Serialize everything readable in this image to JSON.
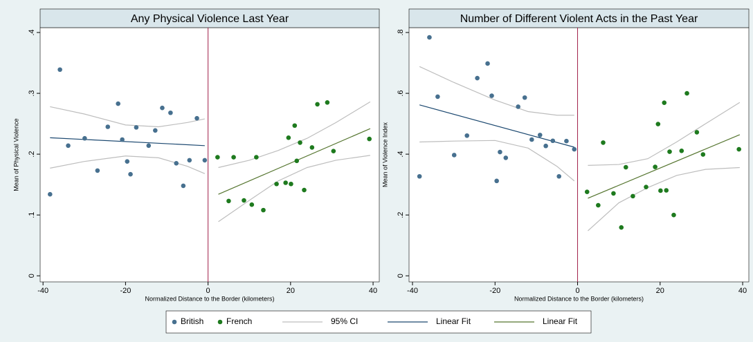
{
  "chart_data": [
    {
      "type": "scatter",
      "title": "Any Physical Violence Last Year",
      "xtitle": "Normalized Distance to the Border (kilometers)",
      "ytitle": "Mean of Physical Violence",
      "xlim": [
        -40.7,
        41.5
      ],
      "ylim": [
        -0.01,
        0.408
      ],
      "xticks": [
        -40,
        -20,
        0,
        20,
        40
      ],
      "yticks": [
        0,
        {
          "value": 0.1,
          "label": ".1"
        },
        {
          "value": 0.2,
          "label": ".2"
        },
        {
          "value": 0.3,
          "label": ".3"
        },
        {
          "value": 0.4,
          "label": ".4"
        }
      ],
      "vline": 0,
      "vline_color": "#a0204a",
      "series": [
        {
          "name": "British",
          "mode": "markers",
          "color": "#47708f",
          "x": [
            -38.3,
            -35.9,
            -33.9,
            -29.9,
            -26.8,
            -24.3,
            -21.8,
            -20.8,
            -19.6,
            -18.8,
            -17.4,
            -14.4,
            -12.8,
            -11.1,
            -9.1,
            -7.7,
            -6.0,
            -4.5,
            -2.7,
            -0.8
          ],
          "values": [
            0.134,
            0.339,
            0.214,
            0.226,
            0.173,
            0.245,
            0.283,
            0.224,
            0.188,
            0.167,
            0.244,
            0.214,
            0.239,
            0.276,
            0.268,
            0.185,
            0.148,
            0.19,
            0.259,
            0.19
          ]
        },
        {
          "name": "French",
          "mode": "markers",
          "color": "#1e7a1e",
          "x": [
            2.3,
            5.0,
            6.2,
            8.7,
            10.6,
            11.7,
            13.4,
            16.6,
            18.8,
            19.5,
            20.1,
            21.0,
            21.5,
            22.3,
            23.3,
            25.2,
            26.5,
            28.9,
            30.4,
            39.1
          ],
          "values": [
            0.195,
            0.123,
            0.195,
            0.124,
            0.117,
            0.195,
            0.108,
            0.151,
            0.153,
            0.227,
            0.151,
            0.247,
            0.189,
            0.219,
            0.141,
            0.211,
            0.282,
            0.285,
            0.205,
            0.225
          ]
        },
        {
          "name": "95% CI",
          "mode": "line",
          "color": "#bdbdbd",
          "x": [
            -38.3,
            -30,
            -20,
            -12,
            -5,
            -0.8
          ],
          "values": [
            0.278,
            0.266,
            0.248,
            0.245,
            0.252,
            0.258
          ]
        },
        {
          "mode": "line",
          "color": "#bdbdbd",
          "x": [
            -38.3,
            -30,
            -20,
            -12,
            -5,
            -0.8
          ],
          "values": [
            0.177,
            0.188,
            0.197,
            0.194,
            0.18,
            0.168
          ]
        },
        {
          "name": "Linear Fit",
          "mode": "line",
          "color": "#1a476f",
          "x": [
            -38.3,
            -0.8
          ],
          "values": [
            0.227,
            0.214
          ]
        },
        {
          "name": "Linear Fit",
          "mode": "line",
          "color": "#55752f",
          "x": [
            2.5,
            39.3
          ],
          "values": [
            0.134,
            0.242
          ]
        },
        {
          "mode": "line",
          "color": "#bdbdbd",
          "x": [
            2.5,
            10,
            17,
            24,
            31,
            39.3
          ],
          "values": [
            0.178,
            0.19,
            0.206,
            0.226,
            0.252,
            0.286
          ]
        },
        {
          "mode": "line",
          "color": "#bdbdbd",
          "x": [
            2.5,
            10,
            17,
            24,
            31,
            39.3
          ],
          "values": [
            0.089,
            0.124,
            0.156,
            0.178,
            0.19,
            0.198
          ]
        }
      ]
    },
    {
      "type": "scatter",
      "title": "Number of Different Violent Acts in the Past Year",
      "xtitle": "Normalized Distance to the Border (kilometers)",
      "ytitle": "Mean of Violence Index",
      "xlim": [
        -40.84,
        41.5
      ],
      "ylim": [
        -0.02,
        0.816
      ],
      "xticks": [
        -40,
        -20,
        0,
        20,
        40
      ],
      "yticks": [
        0,
        {
          "value": 0.2,
          "label": ".2"
        },
        {
          "value": 0.4,
          "label": ".4"
        },
        {
          "value": 0.6,
          "label": ".6"
        },
        {
          "value": 0.8,
          "label": ".8"
        }
      ],
      "vline": 0,
      "vline_color": "#a0204a",
      "series": [
        {
          "mode": "markers",
          "color": "#47708f",
          "x": [
            -38.3,
            -35.9,
            -33.9,
            -29.9,
            -26.8,
            -24.3,
            -21.8,
            -20.8,
            -19.6,
            -18.8,
            -17.4,
            -14.4,
            -12.8,
            -11.1,
            -9.1,
            -7.7,
            -6.0,
            -4.5,
            -2.7,
            -0.8
          ],
          "values": [
            0.327,
            0.784,
            0.589,
            0.397,
            0.461,
            0.65,
            0.698,
            0.592,
            0.312,
            0.407,
            0.388,
            0.556,
            0.586,
            0.448,
            0.463,
            0.427,
            0.444,
            0.327,
            0.443,
            0.416
          ]
        },
        {
          "mode": "markers",
          "color": "#1e7a1e",
          "x": [
            2.3,
            5.0,
            6.2,
            8.7,
            10.6,
            11.7,
            13.4,
            16.6,
            18.8,
            19.5,
            20.1,
            21.0,
            21.5,
            22.3,
            23.3,
            25.2,
            26.5,
            28.9,
            30.4,
            39.1
          ],
          "values": [
            0.276,
            0.232,
            0.438,
            0.271,
            0.159,
            0.357,
            0.262,
            0.292,
            0.358,
            0.499,
            0.28,
            0.569,
            0.281,
            0.408,
            0.2,
            0.411,
            0.6,
            0.472,
            0.399,
            0.416
          ]
        },
        {
          "mode": "line",
          "color": "#bdbdbd",
          "x": [
            -38.3,
            -30,
            -20,
            -12,
            -5,
            -0.8
          ],
          "values": [
            0.688,
            0.636,
            0.578,
            0.54,
            0.528,
            0.528
          ]
        },
        {
          "mode": "line",
          "color": "#bdbdbd",
          "x": [
            -38.3,
            -30,
            -20,
            -12,
            -5,
            -0.8
          ],
          "values": [
            0.44,
            0.443,
            0.445,
            0.42,
            0.36,
            0.312
          ]
        },
        {
          "mode": "line",
          "color": "#1a476f",
          "x": [
            -38.3,
            -0.8
          ],
          "values": [
            0.562,
            0.423
          ]
        },
        {
          "mode": "line",
          "color": "#55752f",
          "x": [
            2.5,
            39.3
          ],
          "values": [
            0.255,
            0.464
          ]
        },
        {
          "mode": "line",
          "color": "#bdbdbd",
          "x": [
            2.5,
            10,
            17,
            24,
            31,
            39.3
          ],
          "values": [
            0.363,
            0.366,
            0.385,
            0.44,
            0.5,
            0.57
          ]
        },
        {
          "mode": "line",
          "color": "#bdbdbd",
          "x": [
            2.5,
            10,
            17,
            24,
            31,
            39.3
          ],
          "values": [
            0.148,
            0.24,
            0.29,
            0.33,
            0.35,
            0.356
          ]
        }
      ]
    }
  ]
}
